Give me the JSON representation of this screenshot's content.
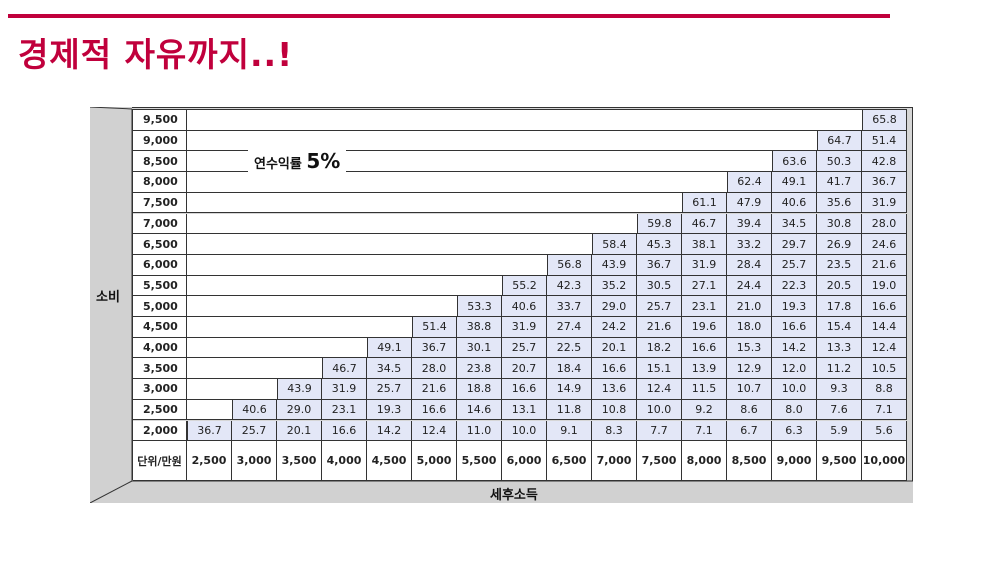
{
  "title": "경제적 자유까지..!",
  "table": {
    "y_axis_label": "소비",
    "x_axis_label": "세후소득",
    "corner_label": "단위/만원",
    "rate_label": "연수익률",
    "rate_value": "5%",
    "row_labels": [
      "9,500",
      "9,000",
      "8,500",
      "8,000",
      "7,500",
      "7,000",
      "6,500",
      "6,000",
      "5,500",
      "5,000",
      "4,500",
      "4,000",
      "3,500",
      "3,000",
      "2,500",
      "2,000"
    ],
    "col_labels": [
      "2,500",
      "3,000",
      "3,500",
      "4,000",
      "4,500",
      "5,000",
      "5,500",
      "6,000",
      "6,500",
      "7,000",
      "7,500",
      "8,000",
      "8,500",
      "9,000",
      "9,500",
      "10,000"
    ],
    "rows": [
      [
        "65.8"
      ],
      [
        "64.7",
        "51.4"
      ],
      [
        "63.6",
        "50.3",
        "42.8"
      ],
      [
        "62.4",
        "49.1",
        "41.7",
        "36.7"
      ],
      [
        "61.1",
        "47.9",
        "40.6",
        "35.6",
        "31.9"
      ],
      [
        "59.8",
        "46.7",
        "39.4",
        "34.5",
        "30.8",
        "28.0"
      ],
      [
        "58.4",
        "45.3",
        "38.1",
        "33.2",
        "29.7",
        "26.9",
        "24.6"
      ],
      [
        "56.8",
        "43.9",
        "36.7",
        "31.9",
        "28.4",
        "25.7",
        "23.5",
        "21.6"
      ],
      [
        "55.2",
        "42.3",
        "35.2",
        "30.5",
        "27.1",
        "24.4",
        "22.3",
        "20.5",
        "19.0"
      ],
      [
        "53.3",
        "40.6",
        "33.7",
        "29.0",
        "25.7",
        "23.1",
        "21.0",
        "19.3",
        "17.8",
        "16.6"
      ],
      [
        "51.4",
        "38.8",
        "31.9",
        "27.4",
        "24.2",
        "21.6",
        "19.6",
        "18.0",
        "16.6",
        "15.4",
        "14.4"
      ],
      [
        "49.1",
        "36.7",
        "30.1",
        "25.7",
        "22.5",
        "20.1",
        "18.2",
        "16.6",
        "15.3",
        "14.2",
        "13.3",
        "12.4"
      ],
      [
        "46.7",
        "34.5",
        "28.0",
        "23.8",
        "20.7",
        "18.4",
        "16.6",
        "15.1",
        "13.9",
        "12.9",
        "12.0",
        "11.2",
        "10.5"
      ],
      [
        "43.9",
        "31.9",
        "25.7",
        "21.6",
        "18.8",
        "16.6",
        "14.9",
        "13.6",
        "12.4",
        "11.5",
        "10.7",
        "10.0",
        "9.3",
        "8.8"
      ],
      [
        "40.6",
        "29.0",
        "23.1",
        "19.3",
        "16.6",
        "14.6",
        "13.1",
        "11.8",
        "10.8",
        "10.0",
        "9.2",
        "8.6",
        "8.0",
        "7.6",
        "7.1"
      ],
      [
        "36.7",
        "25.7",
        "20.1",
        "16.6",
        "14.2",
        "12.4",
        "11.0",
        "10.0",
        "9.1",
        "8.3",
        "7.7",
        "7.1",
        "6.7",
        "6.3",
        "5.9",
        "5.6"
      ]
    ]
  }
}
